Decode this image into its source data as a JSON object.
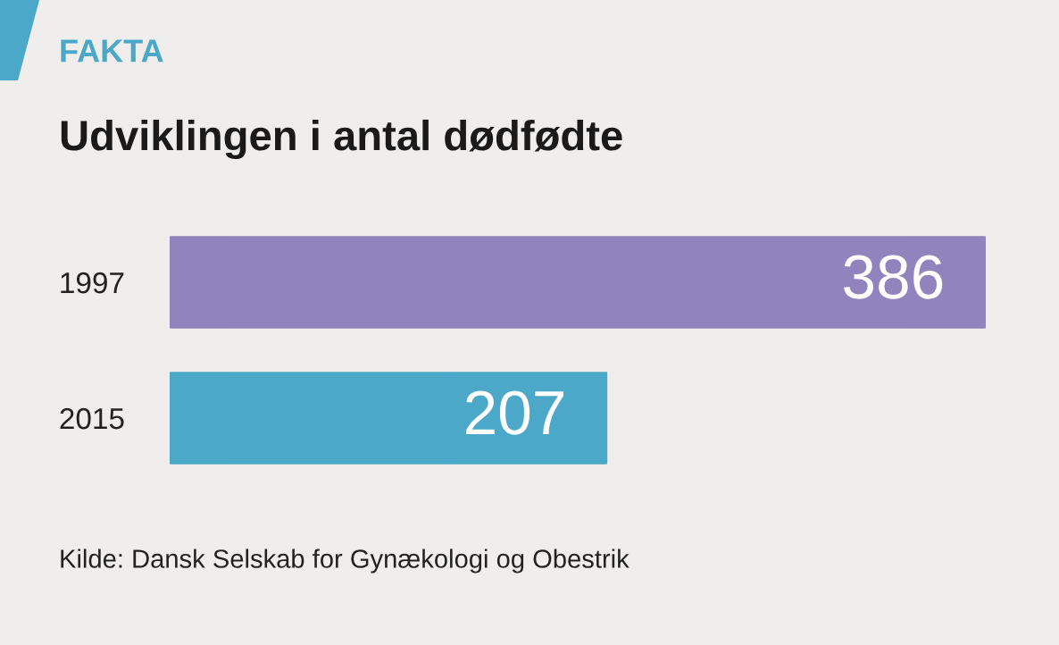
{
  "chart_data": {
    "type": "bar",
    "orientation": "horizontal",
    "title": "Udviklingen i antal dødfødte",
    "categories": [
      "1997",
      "2015"
    ],
    "values": [
      386,
      207
    ],
    "colors": [
      "#9183bd",
      "#4ba8c9"
    ],
    "data_labels": true,
    "grid": false,
    "legend": false,
    "annotations": [
      "FAKTA",
      "Kilde: Dansk Selskab for Gynækologi og Obestrik"
    ]
  }
}
